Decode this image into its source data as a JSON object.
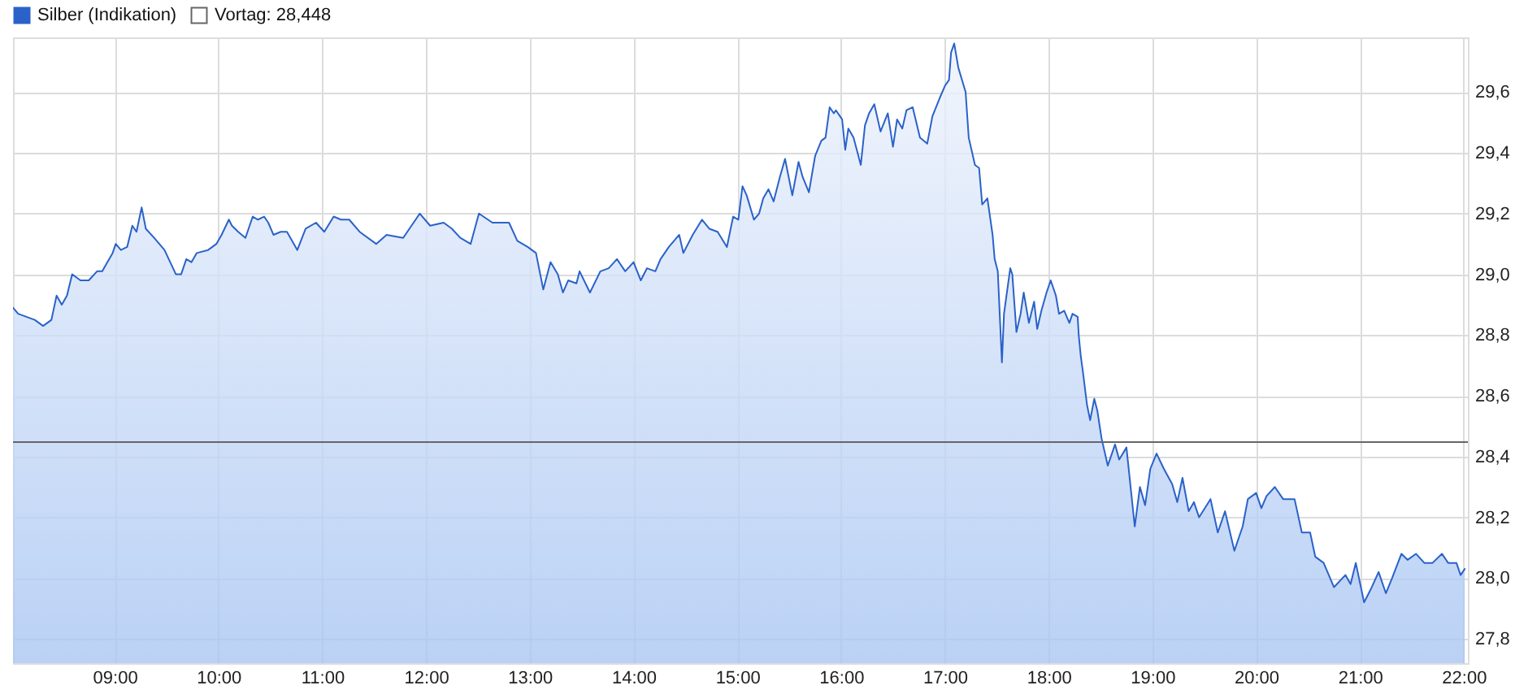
{
  "chart_data": {
    "type": "area",
    "x": [
      8.02,
      8.07,
      8.15,
      8.23,
      8.31,
      8.39,
      8.44,
      8.49,
      8.54,
      8.59,
      8.67,
      8.75,
      8.83,
      8.88,
      8.93,
      8.98,
      9.01,
      9.06,
      9.12,
      9.17,
      9.21,
      9.26,
      9.3,
      9.38,
      9.48,
      9.59,
      9.64,
      9.69,
      9.74,
      9.79,
      9.9,
      9.98,
      10.03,
      10.1,
      10.13,
      10.19,
      10.26,
      10.33,
      10.38,
      10.44,
      10.48,
      10.53,
      10.6,
      10.66,
      10.76,
      10.84,
      10.94,
      11.02,
      11.11,
      11.18,
      11.26,
      11.36,
      11.52,
      11.62,
      11.78,
      11.94,
      12.04,
      12.17,
      12.25,
      12.33,
      12.43,
      12.51,
      12.64,
      12.8,
      12.88,
      12.98,
      13.06,
      13.13,
      13.2,
      13.27,
      13.32,
      13.37,
      13.45,
      13.48,
      13.58,
      13.68,
      13.76,
      13.84,
      13.92,
      14.0,
      14.07,
      14.13,
      14.21,
      14.26,
      14.34,
      14.44,
      14.48,
      14.57,
      14.66,
      14.73,
      14.81,
      14.9,
      14.96,
      15.01,
      15.05,
      15.09,
      15.16,
      15.21,
      15.25,
      15.3,
      15.35,
      15.41,
      15.46,
      15.53,
      15.59,
      15.63,
      15.69,
      15.75,
      15.81,
      15.85,
      15.89,
      15.93,
      15.95,
      16.01,
      16.04,
      16.07,
      16.12,
      16.19,
      16.23,
      16.27,
      16.32,
      16.38,
      16.45,
      16.5,
      16.54,
      16.59,
      16.63,
      16.69,
      16.76,
      16.83,
      16.88,
      16.95,
      17.0,
      17.04,
      17.06,
      17.09,
      17.13,
      17.2,
      17.23,
      17.29,
      17.33,
      17.36,
      17.41,
      17.46,
      17.48,
      17.51,
      17.55,
      17.57,
      17.63,
      17.65,
      17.69,
      17.73,
      17.76,
      17.81,
      17.86,
      17.89,
      17.93,
      17.98,
      18.02,
      18.07,
      18.1,
      18.15,
      18.2,
      18.23,
      18.28,
      18.29,
      18.31,
      18.33,
      18.37,
      18.4,
      18.44,
      18.47,
      18.51,
      18.57,
      18.64,
      18.68,
      18.75,
      18.83,
      18.88,
      18.93,
      18.98,
      19.04,
      19.11,
      19.19,
      19.24,
      19.29,
      19.35,
      19.4,
      19.45,
      19.56,
      19.63,
      19.7,
      19.79,
      19.87,
      19.92,
      20.0,
      20.05,
      20.1,
      20.18,
      20.26,
      20.37,
      20.44,
      20.52,
      20.57,
      20.65,
      20.75,
      20.86,
      20.91,
      20.96,
      21.04,
      21.1,
      21.18,
      21.25,
      21.31,
      21.4,
      21.46,
      21.54,
      21.62,
      21.7,
      21.79,
      21.85,
      21.93,
      21.97,
      22.01
    ],
    "series": [
      {
        "name": "Silber (Indikation)",
        "color": "#2a62c9",
        "values": [
          28.89,
          28.87,
          28.86,
          28.85,
          28.83,
          28.85,
          28.93,
          28.9,
          28.93,
          29.0,
          28.98,
          28.98,
          29.01,
          29.01,
          29.04,
          29.07,
          29.1,
          29.08,
          29.09,
          29.16,
          29.14,
          29.22,
          29.15,
          29.12,
          29.08,
          29.0,
          29.0,
          29.05,
          29.04,
          29.07,
          29.08,
          29.1,
          29.13,
          29.18,
          29.16,
          29.14,
          29.12,
          29.19,
          29.18,
          29.19,
          29.17,
          29.13,
          29.14,
          29.14,
          29.08,
          29.15,
          29.17,
          29.14,
          29.19,
          29.18,
          29.18,
          29.14,
          29.1,
          29.13,
          29.12,
          29.2,
          29.16,
          29.17,
          29.15,
          29.12,
          29.1,
          29.2,
          29.17,
          29.17,
          29.11,
          29.09,
          29.07,
          28.95,
          29.04,
          29.0,
          28.94,
          28.98,
          28.97,
          29.01,
          28.94,
          29.01,
          29.02,
          29.05,
          29.01,
          29.04,
          28.98,
          29.02,
          29.01,
          29.05,
          29.09,
          29.13,
          29.07,
          29.13,
          29.18,
          29.15,
          29.14,
          29.09,
          29.19,
          29.18,
          29.29,
          29.26,
          29.18,
          29.2,
          29.25,
          29.28,
          29.24,
          29.32,
          29.38,
          29.26,
          29.37,
          29.32,
          29.27,
          29.39,
          29.44,
          29.45,
          29.55,
          29.53,
          29.54,
          29.51,
          29.41,
          29.48,
          29.45,
          29.36,
          29.49,
          29.53,
          29.56,
          29.47,
          29.53,
          29.42,
          29.51,
          29.48,
          29.54,
          29.55,
          29.45,
          29.43,
          29.52,
          29.58,
          29.62,
          29.64,
          29.73,
          29.76,
          29.68,
          29.6,
          29.45,
          29.36,
          29.35,
          29.23,
          29.25,
          29.13,
          29.05,
          29.01,
          28.71,
          28.87,
          29.02,
          29.0,
          28.81,
          28.87,
          28.94,
          28.84,
          28.91,
          28.82,
          28.88,
          28.94,
          28.98,
          28.93,
          28.87,
          28.88,
          28.84,
          28.87,
          28.86,
          28.8,
          28.73,
          28.68,
          28.57,
          28.52,
          28.59,
          28.55,
          28.46,
          28.37,
          28.44,
          28.39,
          28.43,
          28.17,
          28.3,
          28.24,
          28.36,
          28.41,
          28.36,
          28.31,
          28.25,
          28.33,
          28.22,
          28.25,
          28.2,
          28.26,
          28.15,
          28.22,
          28.09,
          28.17,
          28.26,
          28.28,
          28.23,
          28.27,
          28.3,
          28.26,
          28.26,
          28.15,
          28.15,
          28.07,
          28.05,
          27.97,
          28.01,
          27.98,
          28.05,
          27.92,
          27.96,
          28.02,
          27.95,
          28.0,
          28.08,
          28.06,
          28.08,
          28.05,
          28.05,
          28.08,
          28.05,
          28.05,
          28.01,
          28.03
        ]
      }
    ],
    "xlim": [
      8.02,
      22.04
    ],
    "xticks": [
      {
        "value": 9,
        "label": "09:00"
      },
      {
        "value": 10,
        "label": "10:00"
      },
      {
        "value": 11,
        "label": "11:00"
      },
      {
        "value": 12,
        "label": "12:00"
      },
      {
        "value": 13,
        "label": "13:00"
      },
      {
        "value": 14,
        "label": "14:00"
      },
      {
        "value": 15,
        "label": "15:00"
      },
      {
        "value": 16,
        "label": "16:00"
      },
      {
        "value": 17,
        "label": "17:00"
      },
      {
        "value": 18,
        "label": "18:00"
      },
      {
        "value": 19,
        "label": "19:00"
      },
      {
        "value": 20,
        "label": "20:00"
      },
      {
        "value": 21,
        "label": "21:00"
      },
      {
        "value": 22,
        "label": "22:00"
      }
    ],
    "ylim": [
      27.72,
      29.78
    ],
    "yticks": [
      {
        "value": 27.8,
        "label": "27,8"
      },
      {
        "value": 28.0,
        "label": "28,0"
      },
      {
        "value": 28.2,
        "label": "28,2"
      },
      {
        "value": 28.4,
        "label": "28,4"
      },
      {
        "value": 28.6,
        "label": "28,6"
      },
      {
        "value": 28.8,
        "label": "28,8"
      },
      {
        "value": 29.0,
        "label": "29,0"
      },
      {
        "value": 29.2,
        "label": "29,2"
      },
      {
        "value": 29.4,
        "label": "29,4"
      },
      {
        "value": 29.6,
        "label": "29,6"
      }
    ],
    "ref_lines": [
      {
        "axis": "y",
        "value": 28.448,
        "label": "Vortag: 28,448",
        "color": "#666666"
      }
    ],
    "grid": true,
    "legend": "top left"
  }
}
